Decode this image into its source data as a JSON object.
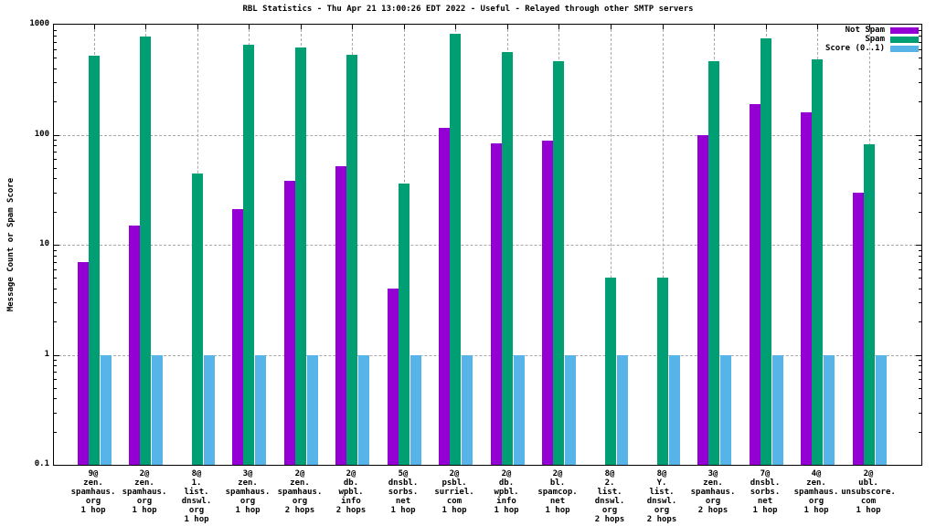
{
  "chart_data": {
    "type": "bar",
    "title": "RBL Statistics - Thu Apr 21 13:00:26 EDT 2022 - Useful - Relayed through other SMTP servers",
    "ylabel": "Message Count or Spam Score",
    "y_scale": "log",
    "ylim": [
      0.1,
      1000
    ],
    "y_tick_values": [
      1000,
      100,
      10,
      1,
      0.1
    ],
    "y_tick_labels": [
      "1000",
      "100",
      "10",
      "1",
      "0.1"
    ],
    "grid": true,
    "legend_position": "top-right-inside",
    "background_color": "#ffffff",
    "gridline_color": "#a8a8a8",
    "categories": [
      [
        "9@",
        "zen.",
        "spamhaus.",
        "org",
        "1 hop"
      ],
      [
        "2@",
        "zen.",
        "spamhaus.",
        "org",
        "1 hop"
      ],
      [
        "8@",
        "1.",
        "list.",
        "dnswl.",
        "org",
        "1 hop"
      ],
      [
        "3@",
        "zen.",
        "spamhaus.",
        "org",
        "1 hop"
      ],
      [
        "2@",
        "zen.",
        "spamhaus.",
        "org",
        "2 hops"
      ],
      [
        "2@",
        "db.",
        "wpbl.",
        "info",
        "2 hops"
      ],
      [
        "5@",
        "dnsbl.",
        "sorbs.",
        "net",
        "1 hop"
      ],
      [
        "2@",
        "psbl.",
        "surriel.",
        "com",
        "1 hop"
      ],
      [
        "2@",
        "db.",
        "wpbl.",
        "info",
        "1 hop"
      ],
      [
        "2@",
        "bl.",
        "spamcop.",
        "net",
        "1 hop"
      ],
      [
        "8@",
        "2.",
        "list.",
        "dnswl.",
        "org",
        "2 hops"
      ],
      [
        "8@",
        "Y.",
        "list.",
        "dnswl.",
        "org",
        "2 hops"
      ],
      [
        "3@",
        "zen.",
        "spamhaus.",
        "org",
        "2 hops"
      ],
      [
        "7@",
        "dnsbl.",
        "sorbs.",
        "net",
        "1 hop"
      ],
      [
        "4@",
        "zen.",
        "spamhaus.",
        "org",
        "1 hop"
      ],
      [
        "2@",
        "ubl.",
        "unsubscore.",
        "com",
        "1 hop"
      ]
    ],
    "series": [
      {
        "name": "Not Spam",
        "color": "#9400d3",
        "values": [
          7,
          15,
          null,
          21,
          38,
          52,
          4,
          115,
          84,
          88,
          null,
          null,
          100,
          190,
          160,
          30
        ]
      },
      {
        "name": "Spam",
        "color": "#009e73",
        "values": [
          520,
          780,
          44,
          660,
          620,
          530,
          36,
          820,
          560,
          470,
          5,
          5,
          470,
          750,
          480,
          82
        ]
      },
      {
        "name": "Score (0..1)",
        "color": "#56b4e9",
        "values": [
          1,
          1,
          1,
          1,
          1,
          1,
          1,
          1,
          1,
          1,
          1,
          1,
          1,
          1,
          1,
          1
        ]
      }
    ]
  }
}
